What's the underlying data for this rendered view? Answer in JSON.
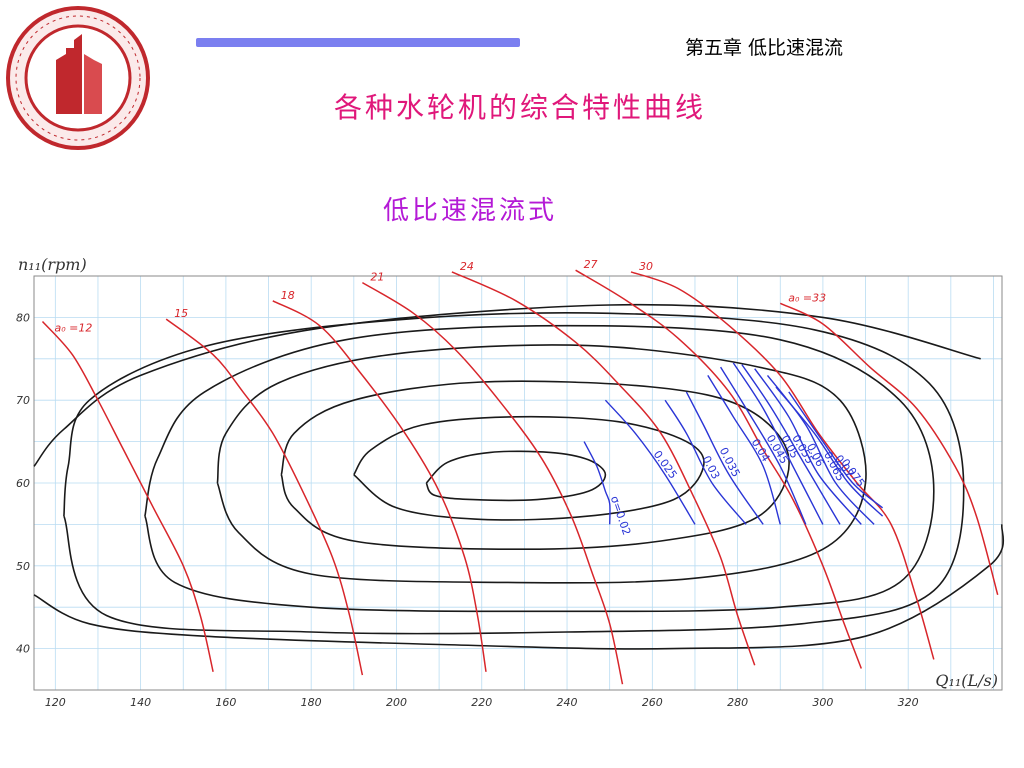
{
  "header": {
    "chapter": "第五章 低比速混流",
    "title": "各种水轮机的综合特性曲线",
    "subtitle": "低比速混流式"
  },
  "logo": {
    "name": "university-seal",
    "color": "#c0282d"
  },
  "colors": {
    "accent_bar": "#7b7ff0",
    "title": "#e0177a",
    "subtitle": "#b41ad6",
    "efficiency": "#1a1a1a",
    "opening": "#d8262b",
    "cavitation": "#2a35d6",
    "grid": "#b9dcf2"
  },
  "chart_data": {
    "type": "line",
    "xlabel": "Q₁₁(L/s)",
    "ylabel": "n₁₁(rpm)",
    "xlim": [
      115,
      342
    ],
    "ylim": [
      35,
      85
    ],
    "x_ticks": [
      120,
      140,
      160,
      180,
      200,
      220,
      240,
      260,
      280,
      300,
      320
    ],
    "y_ticks": [
      40,
      50,
      60,
      70,
      80
    ],
    "grid": true,
    "efficiency_contours": [
      {
        "points": [
          [
            207,
            60
          ],
          [
            212,
            62.5
          ],
          [
            222,
            63.7
          ],
          [
            236,
            63.7
          ],
          [
            245,
            62.8
          ],
          [
            249,
            61
          ],
          [
            245,
            59
          ],
          [
            233,
            58
          ],
          [
            218,
            58
          ],
          [
            209,
            58.5
          ],
          [
            207,
            60
          ]
        ]
      },
      {
        "points": [
          [
            190,
            61
          ],
          [
            194,
            64
          ],
          [
            206,
            67
          ],
          [
            228,
            68
          ],
          [
            252,
            67.4
          ],
          [
            268,
            65
          ],
          [
            272,
            62
          ],
          [
            265,
            58
          ],
          [
            245,
            56
          ],
          [
            220,
            55.6
          ],
          [
            200,
            57
          ],
          [
            190,
            61
          ]
        ]
      },
      {
        "points": [
          [
            173,
            61
          ],
          [
            176,
            66
          ],
          [
            190,
            70
          ],
          [
            220,
            72.2
          ],
          [
            260,
            71.6
          ],
          [
            282,
            69
          ],
          [
            292,
            63
          ],
          [
            285,
            56
          ],
          [
            262,
            53
          ],
          [
            230,
            52
          ],
          [
            190,
            53
          ],
          [
            176,
            57
          ],
          [
            173,
            61
          ]
        ]
      },
      {
        "points": [
          [
            158,
            60
          ],
          [
            160,
            66
          ],
          [
            172,
            72
          ],
          [
            200,
            75.6
          ],
          [
            245,
            76.6
          ],
          [
            285,
            74
          ],
          [
            304,
            70
          ],
          [
            310,
            60
          ],
          [
            300,
            52
          ],
          [
            270,
            48.5
          ],
          [
            225,
            48
          ],
          [
            180,
            49
          ],
          [
            163,
            54
          ],
          [
            158,
            60
          ]
        ]
      },
      {
        "points": [
          [
            141,
            56
          ],
          [
            144,
            63
          ],
          [
            155,
            71
          ],
          [
            188,
            77.3
          ],
          [
            240,
            79
          ],
          [
            290,
            77.3
          ],
          [
            318,
            70
          ],
          [
            326,
            59
          ],
          [
            318,
            48
          ],
          [
            290,
            45
          ],
          [
            240,
            44.5
          ],
          [
            180,
            45
          ],
          [
            148,
            48
          ],
          [
            141,
            56
          ]
        ]
      },
      {
        "points": [
          [
            122,
            56
          ],
          [
            123,
            62
          ],
          [
            128,
            70
          ],
          [
            155,
            76.5
          ],
          [
            200,
            79.7
          ],
          [
            250,
            80.5
          ],
          [
            298,
            78.5
          ],
          [
            325,
            72
          ],
          [
            333,
            60
          ],
          [
            326,
            47
          ],
          [
            295,
            43
          ],
          [
            240,
            42
          ],
          [
            180,
            42
          ],
          [
            132,
            44
          ],
          [
            122,
            56
          ]
        ]
      },
      {
        "points": [
          [
            115,
            62
          ],
          [
            122,
            66.5
          ],
          [
            140,
            73
          ],
          [
            182,
            78.7
          ],
          [
            250,
            81.5
          ],
          [
            300,
            80
          ],
          [
            337,
            75
          ]
        ]
      },
      {
        "points": [
          [
            115,
            46.5
          ],
          [
            128,
            43
          ],
          [
            155,
            41.5
          ],
          [
            210,
            40.5
          ],
          [
            265,
            40
          ],
          [
            310,
            41.5
          ],
          [
            339,
            50
          ],
          [
            342,
            55
          ]
        ]
      }
    ],
    "opening_lines": [
      {
        "label": "a₀ =12",
        "points": [
          [
            117,
            79.5
          ],
          [
            124,
            75.5
          ],
          [
            130,
            70
          ],
          [
            136,
            64
          ],
          [
            143,
            57
          ],
          [
            150,
            50
          ],
          [
            154,
            44
          ],
          [
            157,
            37.2
          ]
        ]
      },
      {
        "label": "15",
        "points": [
          [
            146,
            79.8
          ],
          [
            157,
            75.5
          ],
          [
            164,
            71
          ],
          [
            171,
            66
          ],
          [
            178,
            59
          ],
          [
            185,
            51
          ],
          [
            189,
            44
          ],
          [
            192,
            36.8
          ]
        ]
      },
      {
        "label": "18",
        "points": [
          [
            171,
            82
          ],
          [
            182,
            79
          ],
          [
            192,
            73
          ],
          [
            202,
            66
          ],
          [
            210,
            59
          ],
          [
            216,
            51
          ],
          [
            219,
            44
          ],
          [
            221,
            37.2
          ]
        ]
      },
      {
        "label": "21",
        "points": [
          [
            192,
            84.2
          ],
          [
            204,
            80.5
          ],
          [
            214,
            76
          ],
          [
            224,
            70
          ],
          [
            234,
            63
          ],
          [
            241,
            56
          ],
          [
            246,
            49
          ],
          [
            250,
            43
          ],
          [
            253,
            35.7
          ]
        ]
      },
      {
        "label": "24",
        "points": [
          [
            213,
            85.5
          ],
          [
            228,
            82
          ],
          [
            242,
            77
          ],
          [
            252,
            72
          ],
          [
            262,
            66
          ],
          [
            270,
            58
          ],
          [
            276,
            51
          ],
          [
            280,
            44
          ],
          [
            284,
            38
          ]
        ]
      },
      {
        "label": "27",
        "points": [
          [
            242,
            85.7
          ],
          [
            254,
            82
          ],
          [
            266,
            77.5
          ],
          [
            278,
            71
          ],
          [
            286,
            64
          ],
          [
            293,
            58
          ],
          [
            300,
            50
          ],
          [
            305,
            43
          ],
          [
            309,
            37.6
          ]
        ]
      },
      {
        "label": "30",
        "points": [
          [
            255,
            85.5
          ],
          [
            266,
            83.5
          ],
          [
            278,
            79
          ],
          [
            290,
            73
          ],
          [
            299,
            66
          ],
          [
            308,
            60
          ],
          [
            316,
            55
          ],
          [
            322,
            46
          ],
          [
            326,
            38.7
          ]
        ]
      },
      {
        "label": "a₀ =33",
        "points": [
          [
            290,
            81.7
          ],
          [
            300,
            79.2
          ],
          [
            311,
            74
          ],
          [
            322,
            69
          ],
          [
            331,
            62
          ],
          [
            336,
            56
          ],
          [
            341,
            46.5
          ]
        ]
      }
    ],
    "cavitation_lines": [
      {
        "label": "σ=0.02",
        "points": [
          [
            244,
            65
          ],
          [
            247,
            62
          ],
          [
            249,
            59
          ],
          [
            250,
            57.5
          ],
          [
            250,
            55
          ]
        ]
      },
      {
        "label": "0.025",
        "points": [
          [
            249,
            70
          ],
          [
            256,
            66
          ],
          [
            263,
            61
          ],
          [
            270,
            55
          ]
        ]
      },
      {
        "label": "0.03",
        "points": [
          [
            263,
            70
          ],
          [
            268,
            66
          ],
          [
            274,
            60
          ],
          [
            282,
            55
          ]
        ]
      },
      {
        "label": "0.035",
        "points": [
          [
            268,
            71
          ],
          [
            272,
            67
          ],
          [
            278,
            61
          ],
          [
            286,
            55
          ]
        ]
      },
      {
        "label": "0.04",
        "points": [
          [
            273,
            73
          ],
          [
            279,
            68
          ],
          [
            286,
            62
          ],
          [
            290,
            55
          ]
        ]
      },
      {
        "label": "0.045",
        "points": [
          [
            276,
            74
          ],
          [
            282,
            69
          ],
          [
            290,
            62
          ],
          [
            296,
            55
          ]
        ]
      },
      {
        "label": "0.05",
        "points": [
          [
            279,
            74.5
          ],
          [
            286,
            69
          ],
          [
            293,
            62
          ],
          [
            300,
            55
          ]
        ]
      },
      {
        "label": "0.055",
        "points": [
          [
            281,
            74.3
          ],
          [
            288,
            69
          ],
          [
            296,
            62
          ],
          [
            304,
            55
          ]
        ]
      },
      {
        "label": "0.06",
        "points": [
          [
            284,
            73.8
          ],
          [
            292,
            68
          ],
          [
            299,
            61
          ],
          [
            309,
            55
          ]
        ]
      },
      {
        "label": "0.065",
        "points": [
          [
            287,
            73
          ],
          [
            296,
            67
          ],
          [
            303,
            60
          ],
          [
            312,
            55
          ]
        ]
      },
      {
        "label": "0.07",
        "points": [
          [
            289,
            71.6
          ],
          [
            298,
            66
          ],
          [
            306,
            60
          ],
          [
            314,
            56
          ]
        ]
      },
      {
        "label": "0.075",
        "points": [
          [
            292,
            71
          ],
          [
            300,
            65
          ],
          [
            307,
            60
          ],
          [
            314,
            57
          ]
        ]
      }
    ]
  }
}
